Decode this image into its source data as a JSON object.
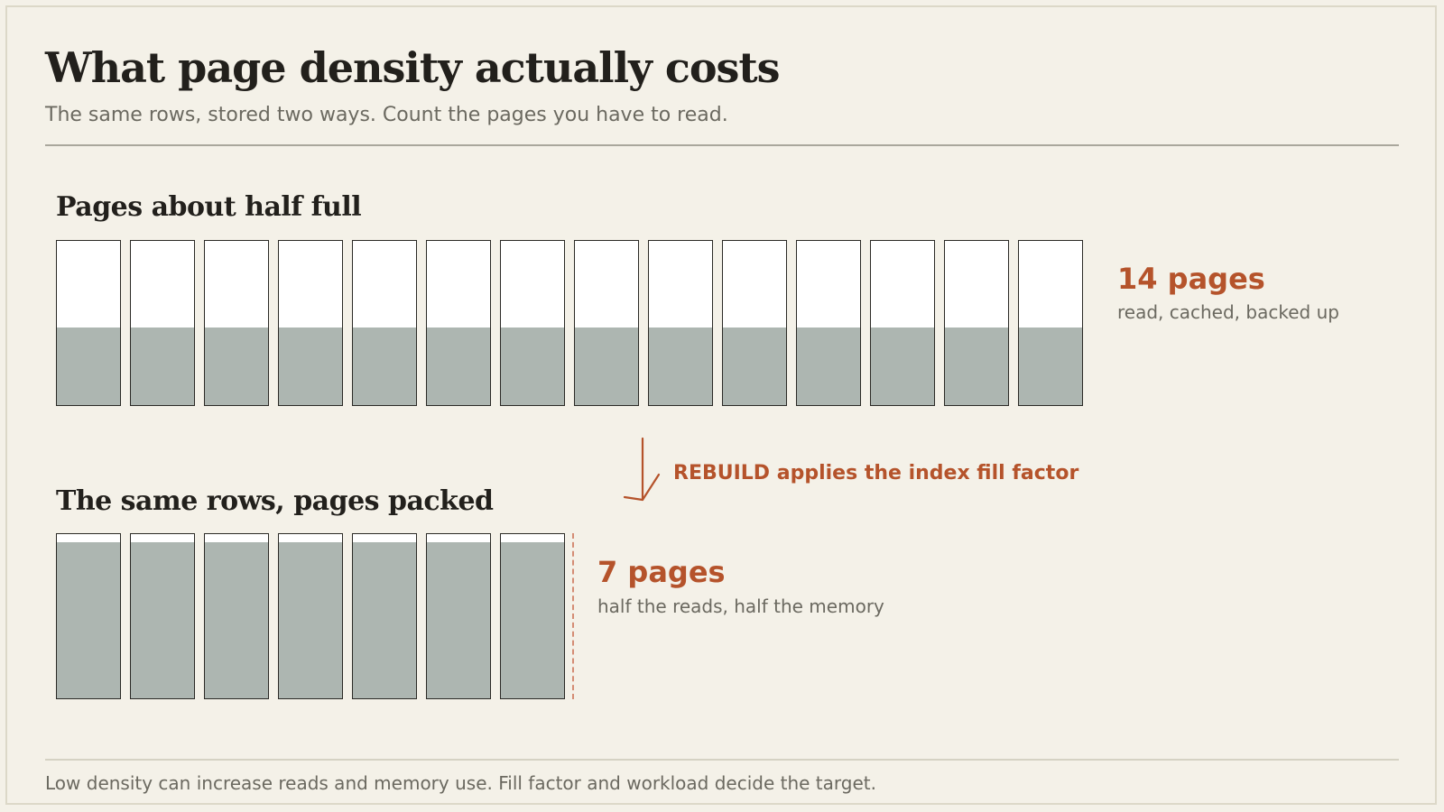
{
  "header": {
    "title": "What page density actually costs",
    "subtitle": "The same rows, stored two ways. Count the pages you have to read."
  },
  "sparse": {
    "title": "Pages about half full",
    "page_count": 14,
    "fill_fraction": 0.47,
    "stat_value": "14 pages",
    "stat_note": "read, cached, backed up"
  },
  "transition": {
    "label": "REBUILD applies the index fill factor"
  },
  "packed": {
    "title": "The same rows, pages packed",
    "page_count": 7,
    "fill_fraction": 0.95,
    "stat_value": "7 pages",
    "stat_note": "half the reads, half the memory"
  },
  "footer": {
    "note": "Low density can increase reads and memory use. Fill factor and workload decide the target."
  },
  "colors": {
    "accent": "#b5532b",
    "page_fill": "#adb6b1",
    "page_empty": "#ffffff",
    "edge_marker": "#d48c74"
  }
}
